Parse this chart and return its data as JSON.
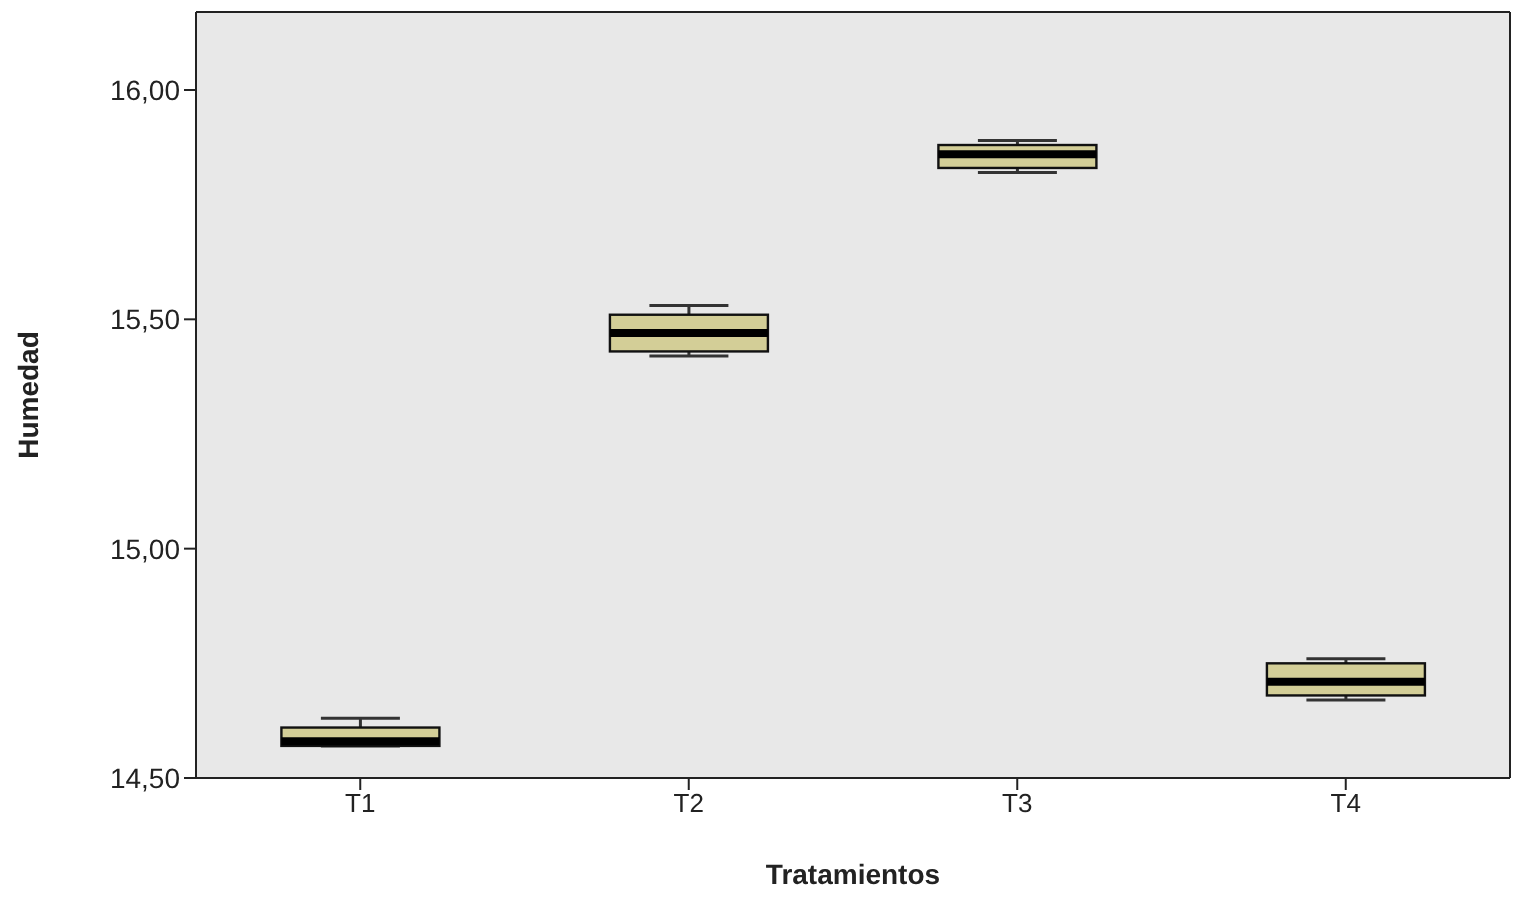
{
  "chart_data": {
    "type": "box",
    "xlabel": "Tratamientos",
    "ylabel": "Humedad",
    "categories": [
      "T1",
      "T2",
      "T3",
      "T4"
    ],
    "color": "#d3ce97",
    "boxes": [
      {
        "low": 14.57,
        "q1": 14.57,
        "median": 14.58,
        "q3": 14.61,
        "high": 14.63
      },
      {
        "low": 15.42,
        "q1": 15.43,
        "median": 15.47,
        "q3": 15.51,
        "high": 15.53
      },
      {
        "low": 15.82,
        "q1": 15.83,
        "median": 15.86,
        "q3": 15.88,
        "high": 15.89
      },
      {
        "low": 14.67,
        "q1": 14.68,
        "median": 14.71,
        "q3": 14.75,
        "high": 14.76
      }
    ],
    "ylim": [
      14.5,
      16.17
    ],
    "yticks": [
      {
        "value": 14.5,
        "label": "14,50"
      },
      {
        "value": 15,
        "label": "15,00"
      },
      {
        "value": 15.5,
        "label": "15,50"
      },
      {
        "value": 16,
        "label": "16,00"
      }
    ]
  }
}
